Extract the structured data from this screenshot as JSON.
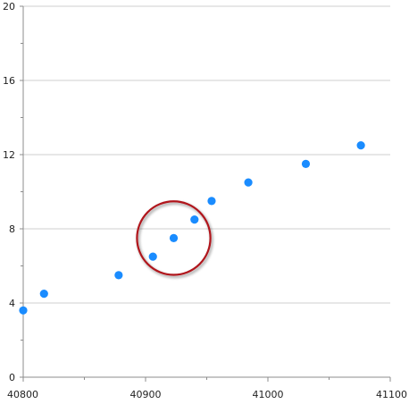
{
  "chart_data": {
    "type": "scatter",
    "title": "",
    "xlabel": "",
    "ylabel": "",
    "xlim": [
      40800,
      41100
    ],
    "ylim": [
      0,
      20
    ],
    "grid": "horizontal",
    "x_ticks": [
      40800,
      40900,
      41000,
      41100
    ],
    "x_tick_labels": [
      "40800",
      "40900",
      "41000",
      "41100"
    ],
    "y_ticks": [
      0,
      4,
      8,
      12,
      16,
      20
    ],
    "y_tick_labels": [
      "0",
      "4",
      "8",
      "12",
      "16",
      "20"
    ],
    "series": [
      {
        "color": "#1a8cff",
        "points": [
          [
            40800,
            3.6
          ],
          [
            40817,
            4.5
          ],
          [
            40878,
            5.5
          ],
          [
            40906,
            6.5
          ],
          [
            40923,
            7.5
          ],
          [
            40940,
            8.5
          ],
          [
            40954,
            9.5
          ],
          [
            40984,
            10.5
          ],
          [
            41031,
            11.5
          ],
          [
            41076,
            12.5
          ]
        ]
      }
    ],
    "annotations": [
      {
        "shape": "circle",
        "color": "#b0161e",
        "center": [
          40923,
          7.5
        ],
        "radius_x": 30
      }
    ]
  }
}
